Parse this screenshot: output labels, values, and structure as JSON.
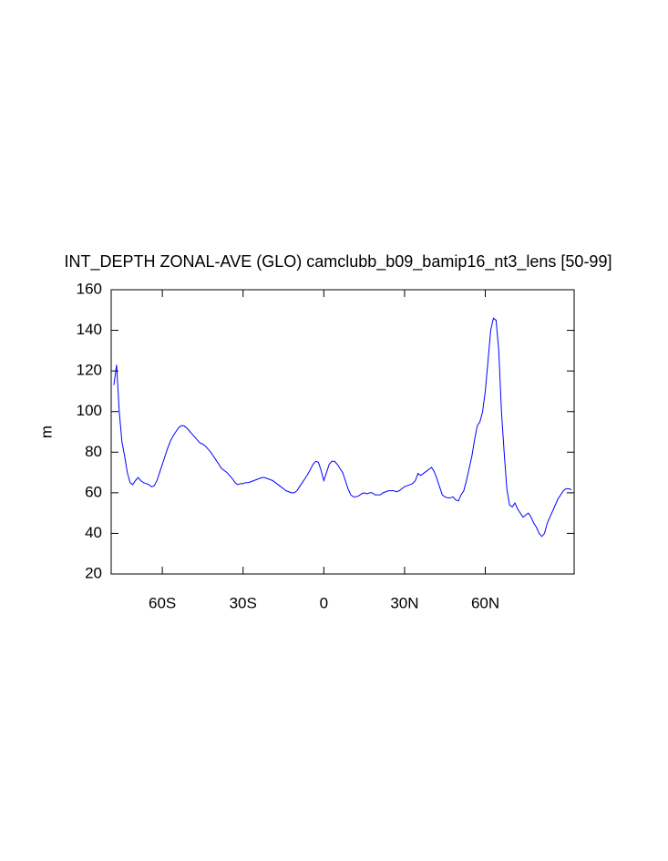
{
  "chart_data": {
    "type": "line",
    "title": "INT_DEPTH ZONAL-AVE (GLO) camclubb_b09_bamip16_nt3_lens [50-99]",
    "ylabel": "m",
    "color": "#0000ff",
    "xlim": [
      -79,
      93
    ],
    "ylim": [
      20,
      160
    ],
    "xticks": [
      {
        "value": -60,
        "label": "60S"
      },
      {
        "value": -30,
        "label": "30S"
      },
      0,
      {
        "value": 30,
        "label": "30N"
      },
      {
        "value": 60,
        "label": "60N"
      }
    ],
    "yticks": [
      20,
      40,
      60,
      80,
      100,
      120,
      140,
      160
    ],
    "x": [
      -78,
      -77,
      -76,
      -75,
      -74,
      -73,
      -72,
      -71,
      -70,
      -69,
      -68,
      -67,
      -66,
      -65,
      -64,
      -63,
      -62,
      -61,
      -60,
      -59,
      -58,
      -57,
      -56,
      -55,
      -54,
      -53,
      -52,
      -51,
      -50,
      -49,
      -48,
      -47,
      -46,
      -45,
      -44,
      -43,
      -42,
      -41,
      -40,
      -39,
      -38,
      -37,
      -36,
      -35,
      -34,
      -33,
      -32,
      -31,
      -30,
      -29,
      -28,
      -27,
      -26,
      -25,
      -24,
      -23,
      -22,
      -21,
      -20,
      -19,
      -18,
      -17,
      -16,
      -15,
      -14,
      -13,
      -12,
      -11,
      -10,
      -9,
      -8,
      -7,
      -6,
      -5,
      -4,
      -3,
      -2,
      -1,
      0,
      1,
      2,
      3,
      4,
      5,
      6,
      7,
      8,
      9,
      10,
      11,
      12,
      13,
      14,
      15,
      16,
      17,
      18,
      19,
      20,
      21,
      22,
      23,
      24,
      25,
      26,
      27,
      28,
      29,
      30,
      31,
      32,
      33,
      34,
      35,
      36,
      37,
      38,
      39,
      40,
      41,
      42,
      43,
      44,
      45,
      46,
      47,
      48,
      49,
      50,
      51,
      52,
      53,
      54,
      55,
      56,
      57,
      58,
      59,
      60,
      61,
      62,
      63,
      64,
      65,
      66,
      67,
      68,
      69,
      70,
      71,
      72,
      73,
      74,
      75,
      76,
      77,
      78,
      79,
      80,
      81,
      82,
      83,
      84,
      85,
      86,
      87,
      88,
      89,
      90,
      91,
      92
    ],
    "values": [
      113,
      123,
      100,
      85,
      78,
      70,
      65,
      64,
      66,
      67.5,
      66,
      65,
      64.5,
      64,
      63,
      63.5,
      66,
      70,
      74,
      78,
      82,
      85.5,
      88,
      90,
      92,
      93,
      93,
      92,
      90.5,
      89,
      87.5,
      86,
      84.5,
      84,
      83,
      81.5,
      80,
      78,
      76,
      74,
      72,
      71,
      70,
      68.5,
      67,
      65,
      64,
      64.5,
      64.5,
      65,
      65,
      65.5,
      66,
      66.5,
      67,
      67.5,
      67.5,
      67,
      66.5,
      66,
      65,
      64,
      63,
      62,
      61,
      60.5,
      60,
      60,
      61,
      63,
      65,
      67,
      69,
      71.5,
      74,
      75.5,
      75,
      71,
      66,
      70,
      74,
      75.5,
      75.5,
      74,
      72,
      70,
      66,
      62,
      59,
      58,
      58,
      58.5,
      59.5,
      60,
      59.5,
      60,
      60,
      59,
      59,
      59,
      60,
      60.5,
      61,
      61,
      61,
      60.5,
      61,
      62,
      63,
      63.5,
      64,
      64.5,
      66,
      69.5,
      68.5,
      69.5,
      70.5,
      71.5,
      72.5,
      70.5,
      67,
      63,
      59,
      58,
      57.5,
      57.5,
      58,
      56.5,
      56,
      59,
      61,
      66,
      72,
      78,
      86,
      93,
      95,
      100,
      110,
      125,
      140,
      146,
      145,
      130,
      100,
      80,
      62,
      54,
      53,
      55,
      52,
      50,
      48,
      49,
      50,
      48,
      45,
      43,
      40,
      38.5,
      40,
      45,
      48,
      51,
      54,
      57,
      59,
      61,
      62,
      62,
      61.5
    ]
  }
}
